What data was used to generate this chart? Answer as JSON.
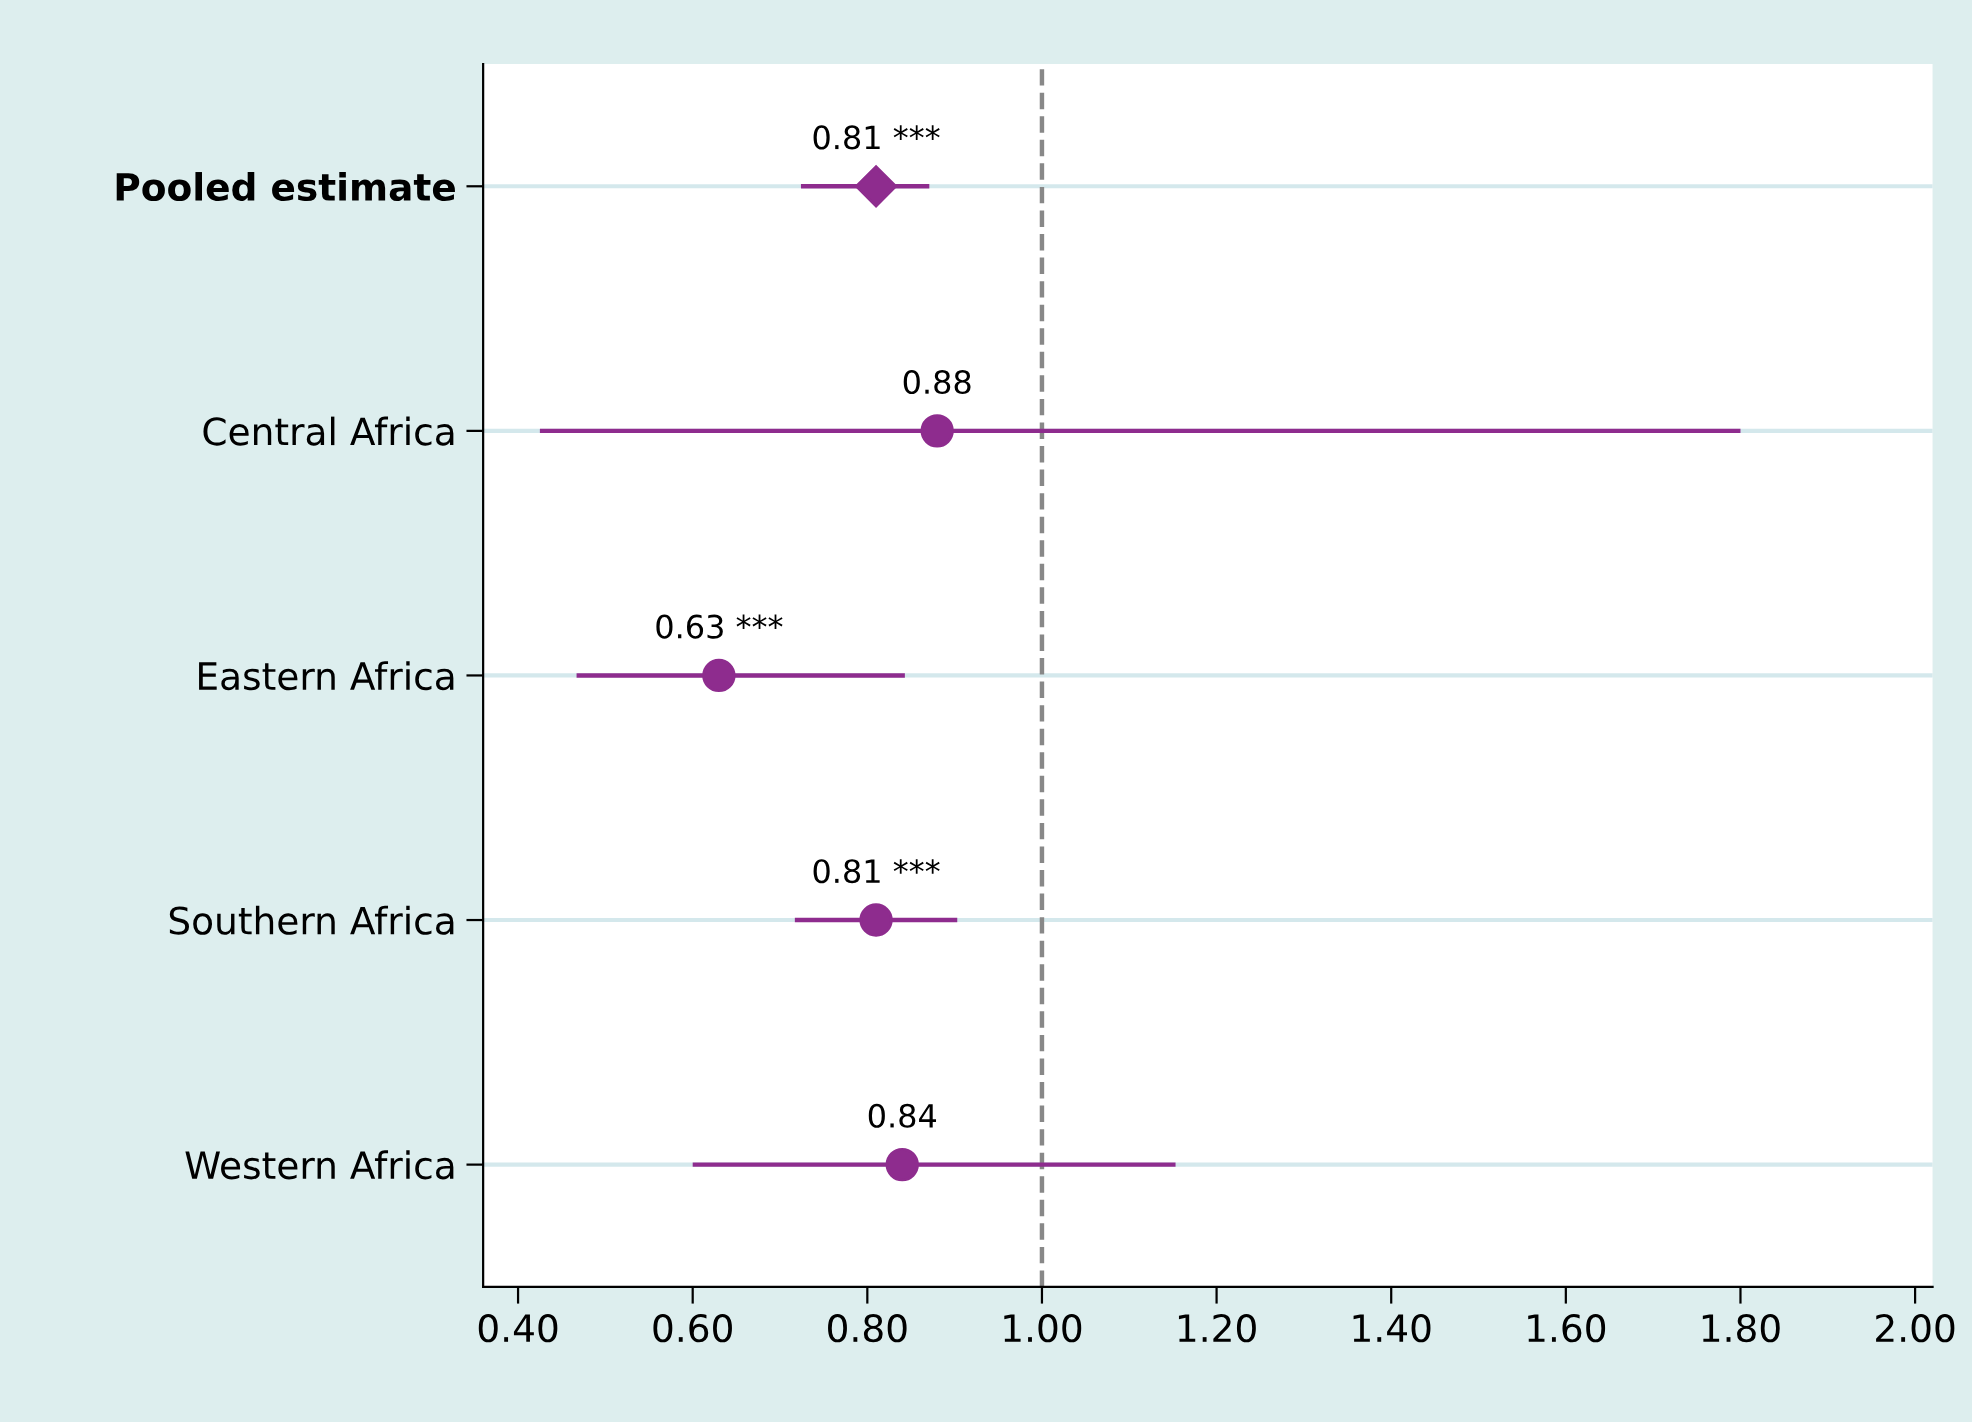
{
  "chart_data": {
    "type": "scatter",
    "orientation": "horizontal",
    "categories": [
      "Pooled estimate",
      "Central Africa",
      "Eastern Africa",
      "Southern Africa",
      "Western Africa"
    ],
    "series": [
      {
        "color": "#8e2c8e",
        "marker": "diamond",
        "values": [
          0.81,
          null,
          null,
          null,
          null
        ],
        "errors": [
          [
            0.724,
            0.871
          ],
          null,
          null,
          null,
          null
        ],
        "value_labels": [
          "0.81 ***",
          null,
          null,
          null,
          null
        ]
      },
      {
        "color": "#8e2c8e",
        "marker": "circle",
        "values": [
          null,
          0.88,
          0.63,
          0.81,
          0.84
        ],
        "errors": [
          null,
          [
            0.425,
            1.8
          ],
          [
            0.467,
            0.843
          ],
          [
            0.717,
            0.903
          ],
          [
            0.6,
            1.153
          ]
        ],
        "value_labels": [
          null,
          "0.88",
          "0.63 ***",
          "0.81 ***",
          "0.84"
        ]
      }
    ],
    "xlim": [
      0.36,
      2.02
    ],
    "xticks": [
      {
        "value": 0.4,
        "label": "0.40"
      },
      {
        "value": 0.6,
        "label": "0.60"
      },
      {
        "value": 0.8,
        "label": "0.80"
      },
      {
        "value": 1.0,
        "label": "1.00"
      },
      {
        "value": 1.2,
        "label": "1.20"
      },
      {
        "value": 1.4,
        "label": "1.40"
      },
      {
        "value": 1.6,
        "label": "1.60"
      },
      {
        "value": 1.8,
        "label": "1.80"
      },
      {
        "value": 2.0,
        "label": "2.00"
      }
    ],
    "ref_lines": [
      {
        "axis": "x",
        "value": 1.0,
        "color": "#888888",
        "line_style": "dashed"
      }
    ],
    "grid": "y"
  }
}
